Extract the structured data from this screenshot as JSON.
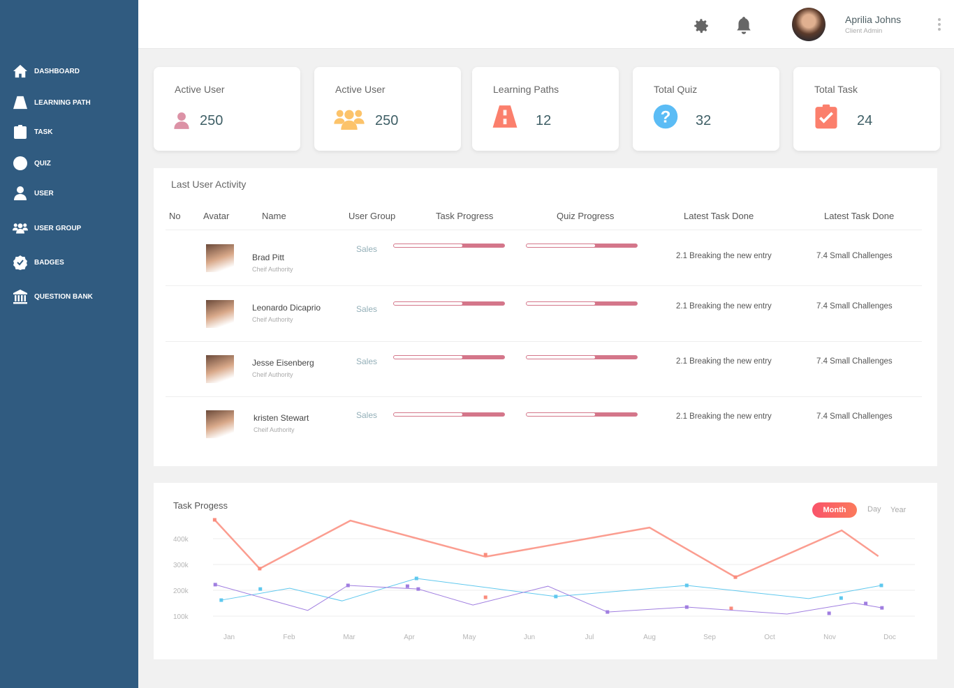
{
  "sidebar": {
    "items": [
      {
        "label": "DASHBOARD",
        "icon": "home-icon"
      },
      {
        "label": "LEARNING PATH",
        "icon": "road-icon"
      },
      {
        "label": "TASK",
        "icon": "clipboard-check-icon"
      },
      {
        "label": "QUIZ",
        "icon": "question-circle-icon"
      },
      {
        "label": "USER",
        "icon": "user-icon"
      },
      {
        "label": "USER GROUP",
        "icon": "users-icon"
      },
      {
        "label": "BADGES",
        "icon": "badge-check-icon"
      },
      {
        "label": "QUESTION BANK",
        "icon": "bank-icon"
      }
    ]
  },
  "header": {
    "user_name": "Aprilia Johns",
    "user_role": "Client Admin"
  },
  "cards": [
    {
      "title": "Active User",
      "value": "250",
      "icon": "user-icon",
      "color": "#dc92a6"
    },
    {
      "title": "Active User",
      "value": "250",
      "icon": "users-icon",
      "color": "#fcc36a"
    },
    {
      "title": "Learning Paths",
      "value": "12",
      "icon": "road-icon",
      "color": "#fb7f6c"
    },
    {
      "title": "Total Quiz",
      "value": "32",
      "icon": "question-circle-icon",
      "color": "#5bbcf5"
    },
    {
      "title": "Total Task",
      "value": "24",
      "icon": "clipboard-check-icon",
      "color": "#fb7f6c"
    }
  ],
  "activity": {
    "title": "Last User Activity",
    "columns": [
      "No",
      "Avatar",
      "Name",
      "User Group",
      "Task Progress",
      "Quiz Progress",
      "Latest Task Done",
      "Latest Task Done"
    ],
    "rows": [
      {
        "name": "Brad Pitt",
        "role": "Cheif Authority",
        "group": "Sales",
        "task_progress": 0.38,
        "quiz_progress": 0.38,
        "latest1": "2.1 Breaking the new entry",
        "latest2": "7.4 Small Challenges"
      },
      {
        "name": "Leonardo Dicaprio",
        "role": "Cheif Authority",
        "group": "Sales",
        "task_progress": 0.38,
        "quiz_progress": 0.38,
        "latest1": "2.1 Breaking the new entry",
        "latest2": "7.4 Small Challenges"
      },
      {
        "name": "Jesse Eisenberg",
        "role": "Cheif Authority",
        "group": "Sales",
        "task_progress": 0.38,
        "quiz_progress": 0.38,
        "latest1": "2.1 Breaking the new entry",
        "latest2": "7.4 Small Challenges"
      },
      {
        "name": "kristen Stewart",
        "role": "Cheif Authority",
        "group": "Sales",
        "task_progress": 0.38,
        "quiz_progress": 0.38,
        "latest1": "2.1 Breaking the new entry",
        "latest2": "7.4 Small Challenges"
      }
    ]
  },
  "chart_data": {
    "type": "line",
    "title": "Task Progess",
    "toggles": {
      "month": "Month",
      "day": "Day",
      "year": "Year",
      "active": "Month"
    },
    "categories": [
      "Jan",
      "Feb",
      "Mar",
      "Apr",
      "May",
      "Jun",
      "Jul",
      "Aug",
      "Sep",
      "Oct",
      "Nov",
      "Doc"
    ],
    "yticks": [
      {
        "v": 100000,
        "label": "100k"
      },
      {
        "v": 200000,
        "label": "200k"
      },
      {
        "v": 300000,
        "label": "300k"
      },
      {
        "v": 400000,
        "label": "400k"
      }
    ],
    "ylim": [
      0,
      500000
    ],
    "grid": true,
    "series": [
      {
        "name": "red",
        "color": "#fa8c7c",
        "width": 2.5,
        "points": [
          [
            -0.24,
            473000
          ],
          [
            0.51,
            284000
          ],
          [
            2.02,
            470000
          ],
          [
            4.27,
            330000
          ],
          [
            7.0,
            443000
          ],
          [
            8.43,
            251000
          ],
          [
            10.2,
            432000
          ],
          [
            10.81,
            332000
          ]
        ],
        "markers": [
          [
            -0.24,
            473000
          ],
          [
            0.51,
            284000
          ],
          [
            4.27,
            338000
          ],
          [
            4.27,
            173000
          ],
          [
            8.43,
            251000
          ],
          [
            8.36,
            130000
          ]
        ]
      },
      {
        "name": "blue",
        "color": "#5fc8ee",
        "width": 1,
        "points": [
          [
            -0.13,
            162000
          ],
          [
            1.01,
            208000
          ],
          [
            1.88,
            159000
          ],
          [
            3.12,
            246000
          ],
          [
            5.44,
            176000
          ],
          [
            7.62,
            219000
          ],
          [
            9.65,
            168000
          ],
          [
            10.86,
            219000
          ]
        ],
        "markers": [
          [
            -0.13,
            162000
          ],
          [
            0.52,
            205000
          ],
          [
            3.12,
            246000
          ],
          [
            5.44,
            176000
          ],
          [
            7.62,
            219000
          ],
          [
            10.19,
            170000
          ],
          [
            10.86,
            219000
          ]
        ]
      },
      {
        "name": "purple",
        "color": "#a07ee0",
        "width": 1,
        "points": [
          [
            -0.23,
            222000
          ],
          [
            1.31,
            122000
          ],
          [
            1.98,
            219000
          ],
          [
            3.15,
            205000
          ],
          [
            4.06,
            143000
          ],
          [
            5.31,
            216000
          ],
          [
            6.3,
            116000
          ],
          [
            7.62,
            135000
          ],
          [
            9.29,
            108000
          ],
          [
            10.4,
            151000
          ],
          [
            10.87,
            132000
          ]
        ],
        "markers": [
          [
            -0.23,
            222000
          ],
          [
            1.98,
            219000
          ],
          [
            2.97,
            216000
          ],
          [
            3.15,
            205000
          ],
          [
            6.3,
            116000
          ],
          [
            7.62,
            135000
          ],
          [
            9.99,
            111000
          ],
          [
            10.6,
            149000
          ],
          [
            10.87,
            132000
          ]
        ]
      }
    ]
  }
}
